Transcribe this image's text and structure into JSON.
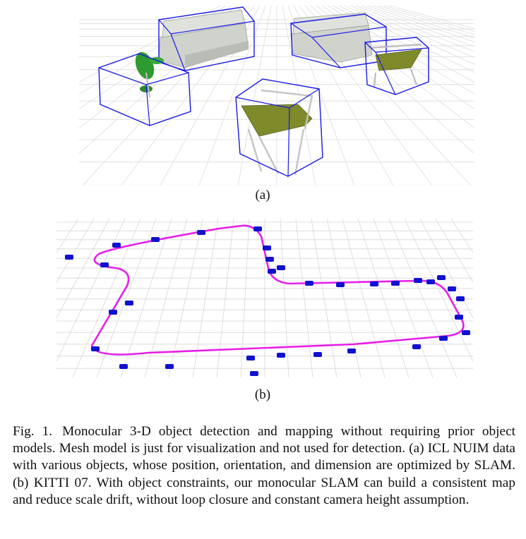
{
  "figure": {
    "subcaption_a": "(a)",
    "subcaption_b": "(b)",
    "caption_label": "Fig. 1.",
    "caption_text": "Monocular 3-D object detection and mapping without requiring prior object models. Mesh model is just for visualization and not used for detection. (a) ICL NUIM data with various objects, whose position, orientation, and dimension are optimized by SLAM. (b) KITTI 07. With object constraints, our monocular SLAM can build a consistent map and reduce scale drift, without loop closure and constant camera height assumption."
  },
  "colors": {
    "box": "#1a1ae6",
    "trajectory": "#e81ee8",
    "car": "#1010d0",
    "sofa": "#cfd3cc",
    "chair_seat": "#7f8a2a",
    "plant": "#2f9a2f",
    "grid": "#d6d6d6"
  }
}
